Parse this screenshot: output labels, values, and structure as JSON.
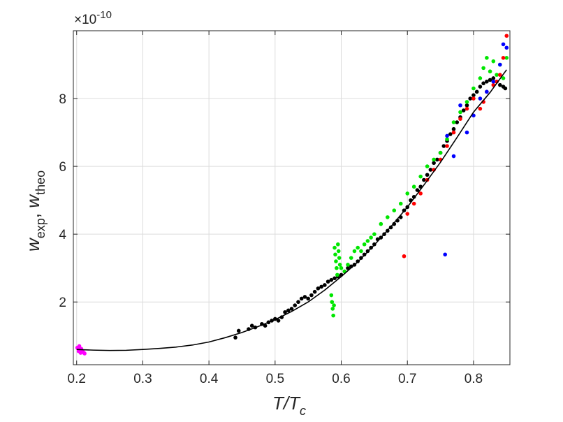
{
  "chart_data": {
    "type": "scatter",
    "title": "",
    "xlabel": {
      "main": "T/T",
      "sub": "c"
    },
    "ylabel": {
      "w1": "w",
      "w1_sub": "exp",
      "sep": ", ",
      "w2": "w",
      "w2_sub": "theo"
    },
    "exponent_label": "×10",
    "exponent_power": "-10",
    "xlim": [
      0.195,
      0.855
    ],
    "ylim": [
      0.15,
      10.0
    ],
    "xticks": [
      0.2,
      0.3,
      0.4,
      0.5,
      0.6,
      0.7,
      0.8
    ],
    "xtick_labels": [
      "0.2",
      "0.3",
      "0.4",
      "0.5",
      "0.6",
      "0.7",
      "0.8"
    ],
    "yticks": [
      2,
      4,
      6,
      8
    ],
    "ytick_labels": [
      "2",
      "4",
      "6",
      "8"
    ],
    "y_scale_factor": "1e-10",
    "grid": true,
    "legend": "none",
    "series": [
      {
        "color": "#ff00ff",
        "points": [
          [
            0.201,
            0.65
          ],
          [
            0.203,
            0.55
          ],
          [
            0.204,
            0.7
          ],
          [
            0.205,
            0.6
          ],
          [
            0.206,
            0.5
          ],
          [
            0.207,
            0.62
          ],
          [
            0.209,
            0.55
          ],
          [
            0.211,
            0.5
          ],
          [
            0.212,
            0.48
          ]
        ]
      },
      {
        "color": "#000000",
        "points": [
          [
            0.44,
            0.95
          ],
          [
            0.445,
            1.15
          ],
          [
            0.46,
            1.2
          ],
          [
            0.465,
            1.3
          ],
          [
            0.47,
            1.25
          ],
          [
            0.48,
            1.35
          ],
          [
            0.485,
            1.3
          ],
          [
            0.49,
            1.4
          ],
          [
            0.495,
            1.45
          ],
          [
            0.5,
            1.5
          ],
          [
            0.505,
            1.45
          ],
          [
            0.51,
            1.55
          ],
          [
            0.515,
            1.7
          ],
          [
            0.52,
            1.75
          ],
          [
            0.525,
            1.8
          ],
          [
            0.53,
            1.9
          ],
          [
            0.535,
            2.0
          ],
          [
            0.54,
            2.1
          ],
          [
            0.545,
            2.15
          ],
          [
            0.55,
            2.1
          ],
          [
            0.555,
            2.2
          ],
          [
            0.56,
            2.3
          ],
          [
            0.565,
            2.4
          ],
          [
            0.57,
            2.45
          ],
          [
            0.575,
            2.5
          ],
          [
            0.58,
            2.6
          ],
          [
            0.585,
            2.65
          ],
          [
            0.59,
            2.7
          ],
          [
            0.595,
            2.75
          ],
          [
            0.6,
            2.8
          ],
          [
            0.605,
            2.9
          ],
          [
            0.61,
            3.0
          ],
          [
            0.615,
            3.05
          ],
          [
            0.62,
            3.1
          ],
          [
            0.625,
            3.2
          ],
          [
            0.63,
            3.3
          ],
          [
            0.635,
            3.4
          ],
          [
            0.64,
            3.5
          ],
          [
            0.645,
            3.6
          ],
          [
            0.65,
            3.7
          ],
          [
            0.655,
            3.85
          ],
          [
            0.66,
            3.9
          ],
          [
            0.665,
            4.0
          ],
          [
            0.67,
            4.1
          ],
          [
            0.675,
            4.2
          ],
          [
            0.68,
            4.3
          ],
          [
            0.685,
            4.4
          ],
          [
            0.69,
            4.5
          ],
          [
            0.695,
            4.7
          ],
          [
            0.7,
            4.8
          ],
          [
            0.705,
            5.0
          ],
          [
            0.71,
            5.1
          ],
          [
            0.715,
            5.3
          ],
          [
            0.72,
            5.4
          ],
          [
            0.725,
            5.6
          ],
          [
            0.73,
            5.75
          ],
          [
            0.735,
            5.9
          ],
          [
            0.74,
            6.1
          ],
          [
            0.745,
            6.2
          ],
          [
            0.75,
            6.4
          ],
          [
            0.755,
            6.6
          ],
          [
            0.76,
            6.75
          ],
          [
            0.765,
            6.95
          ],
          [
            0.77,
            7.1
          ],
          [
            0.775,
            7.3
          ],
          [
            0.78,
            7.45
          ],
          [
            0.785,
            7.65
          ],
          [
            0.79,
            7.8
          ],
          [
            0.795,
            8.0
          ],
          [
            0.8,
            8.1
          ],
          [
            0.805,
            8.2
          ],
          [
            0.81,
            8.35
          ],
          [
            0.815,
            8.45
          ],
          [
            0.82,
            8.5
          ],
          [
            0.825,
            8.55
          ],
          [
            0.83,
            8.6
          ],
          [
            0.835,
            8.5
          ],
          [
            0.84,
            8.4
          ],
          [
            0.845,
            8.35
          ],
          [
            0.848,
            8.3
          ]
        ]
      },
      {
        "color": "#00e600",
        "points": [
          [
            0.585,
            2.2
          ],
          [
            0.586,
            2.0
          ],
          [
            0.587,
            1.8
          ],
          [
            0.588,
            1.6
          ],
          [
            0.589,
            1.9
          ],
          [
            0.59,
            3.6
          ],
          [
            0.591,
            3.4
          ],
          [
            0.592,
            3.2
          ],
          [
            0.593,
            3.0
          ],
          [
            0.594,
            2.8
          ],
          [
            0.595,
            3.7
          ],
          [
            0.596,
            3.5
          ],
          [
            0.597,
            3.3
          ],
          [
            0.598,
            3.1
          ],
          [
            0.6,
            3.0
          ],
          [
            0.605,
            2.9
          ],
          [
            0.61,
            3.1
          ],
          [
            0.615,
            3.3
          ],
          [
            0.62,
            3.5
          ],
          [
            0.625,
            3.6
          ],
          [
            0.63,
            3.5
          ],
          [
            0.635,
            3.7
          ],
          [
            0.64,
            3.8
          ],
          [
            0.645,
            3.9
          ],
          [
            0.65,
            4.0
          ],
          [
            0.66,
            4.3
          ],
          [
            0.67,
            4.5
          ],
          [
            0.68,
            4.7
          ],
          [
            0.69,
            4.9
          ],
          [
            0.7,
            5.2
          ],
          [
            0.71,
            5.4
          ],
          [
            0.72,
            5.7
          ],
          [
            0.73,
            6.0
          ],
          [
            0.74,
            6.2
          ],
          [
            0.75,
            6.4
          ],
          [
            0.76,
            6.8
          ],
          [
            0.77,
            7.3
          ],
          [
            0.78,
            7.6
          ],
          [
            0.79,
            7.9
          ],
          [
            0.8,
            8.3
          ],
          [
            0.81,
            8.6
          ],
          [
            0.815,
            8.9
          ],
          [
            0.82,
            9.2
          ],
          [
            0.825,
            8.8
          ],
          [
            0.83,
            9.1
          ],
          [
            0.835,
            8.7
          ],
          [
            0.84,
            9.0
          ],
          [
            0.845,
            8.6
          ],
          [
            0.85,
            9.2
          ]
        ]
      },
      {
        "color": "#ff0000",
        "points": [
          [
            0.695,
            3.35
          ],
          [
            0.7,
            4.6
          ],
          [
            0.71,
            4.9
          ],
          [
            0.72,
            5.2
          ],
          [
            0.73,
            5.6
          ],
          [
            0.74,
            5.9
          ],
          [
            0.75,
            6.2
          ],
          [
            0.76,
            6.6
          ],
          [
            0.77,
            7.0
          ],
          [
            0.78,
            7.4
          ],
          [
            0.79,
            7.7
          ],
          [
            0.8,
            8.0
          ],
          [
            0.81,
            7.7
          ],
          [
            0.815,
            7.9
          ],
          [
            0.82,
            8.2
          ],
          [
            0.83,
            8.4
          ],
          [
            0.835,
            8.5
          ],
          [
            0.84,
            8.7
          ],
          [
            0.845,
            9.2
          ],
          [
            0.85,
            9.85
          ]
        ]
      },
      {
        "color": "#0000ff",
        "points": [
          [
            0.757,
            3.4
          ],
          [
            0.76,
            6.9
          ],
          [
            0.77,
            6.3
          ],
          [
            0.78,
            7.8
          ],
          [
            0.79,
            7.0
          ],
          [
            0.8,
            7.5
          ],
          [
            0.81,
            8.0
          ],
          [
            0.82,
            8.2
          ],
          [
            0.83,
            8.5
          ],
          [
            0.84,
            9.0
          ],
          [
            0.845,
            9.6
          ],
          [
            0.85,
            9.5
          ]
        ]
      }
    ],
    "fit_curve": {
      "type": "line",
      "color": "#000000",
      "x": [
        0.2,
        0.225,
        0.25,
        0.275,
        0.3,
        0.325,
        0.35,
        0.375,
        0.4,
        0.425,
        0.45,
        0.475,
        0.5,
        0.525,
        0.55,
        0.575,
        0.6,
        0.625,
        0.65,
        0.675,
        0.7,
        0.725,
        0.75,
        0.775,
        0.8,
        0.825,
        0.85
      ],
      "y": [
        0.6,
        0.58,
        0.57,
        0.575,
        0.6,
        0.63,
        0.67,
        0.73,
        0.82,
        0.95,
        1.1,
        1.28,
        1.48,
        1.72,
        2.0,
        2.35,
        2.75,
        3.18,
        3.68,
        4.22,
        4.8,
        5.45,
        6.12,
        6.85,
        7.6,
        8.18,
        8.85
      ]
    }
  }
}
